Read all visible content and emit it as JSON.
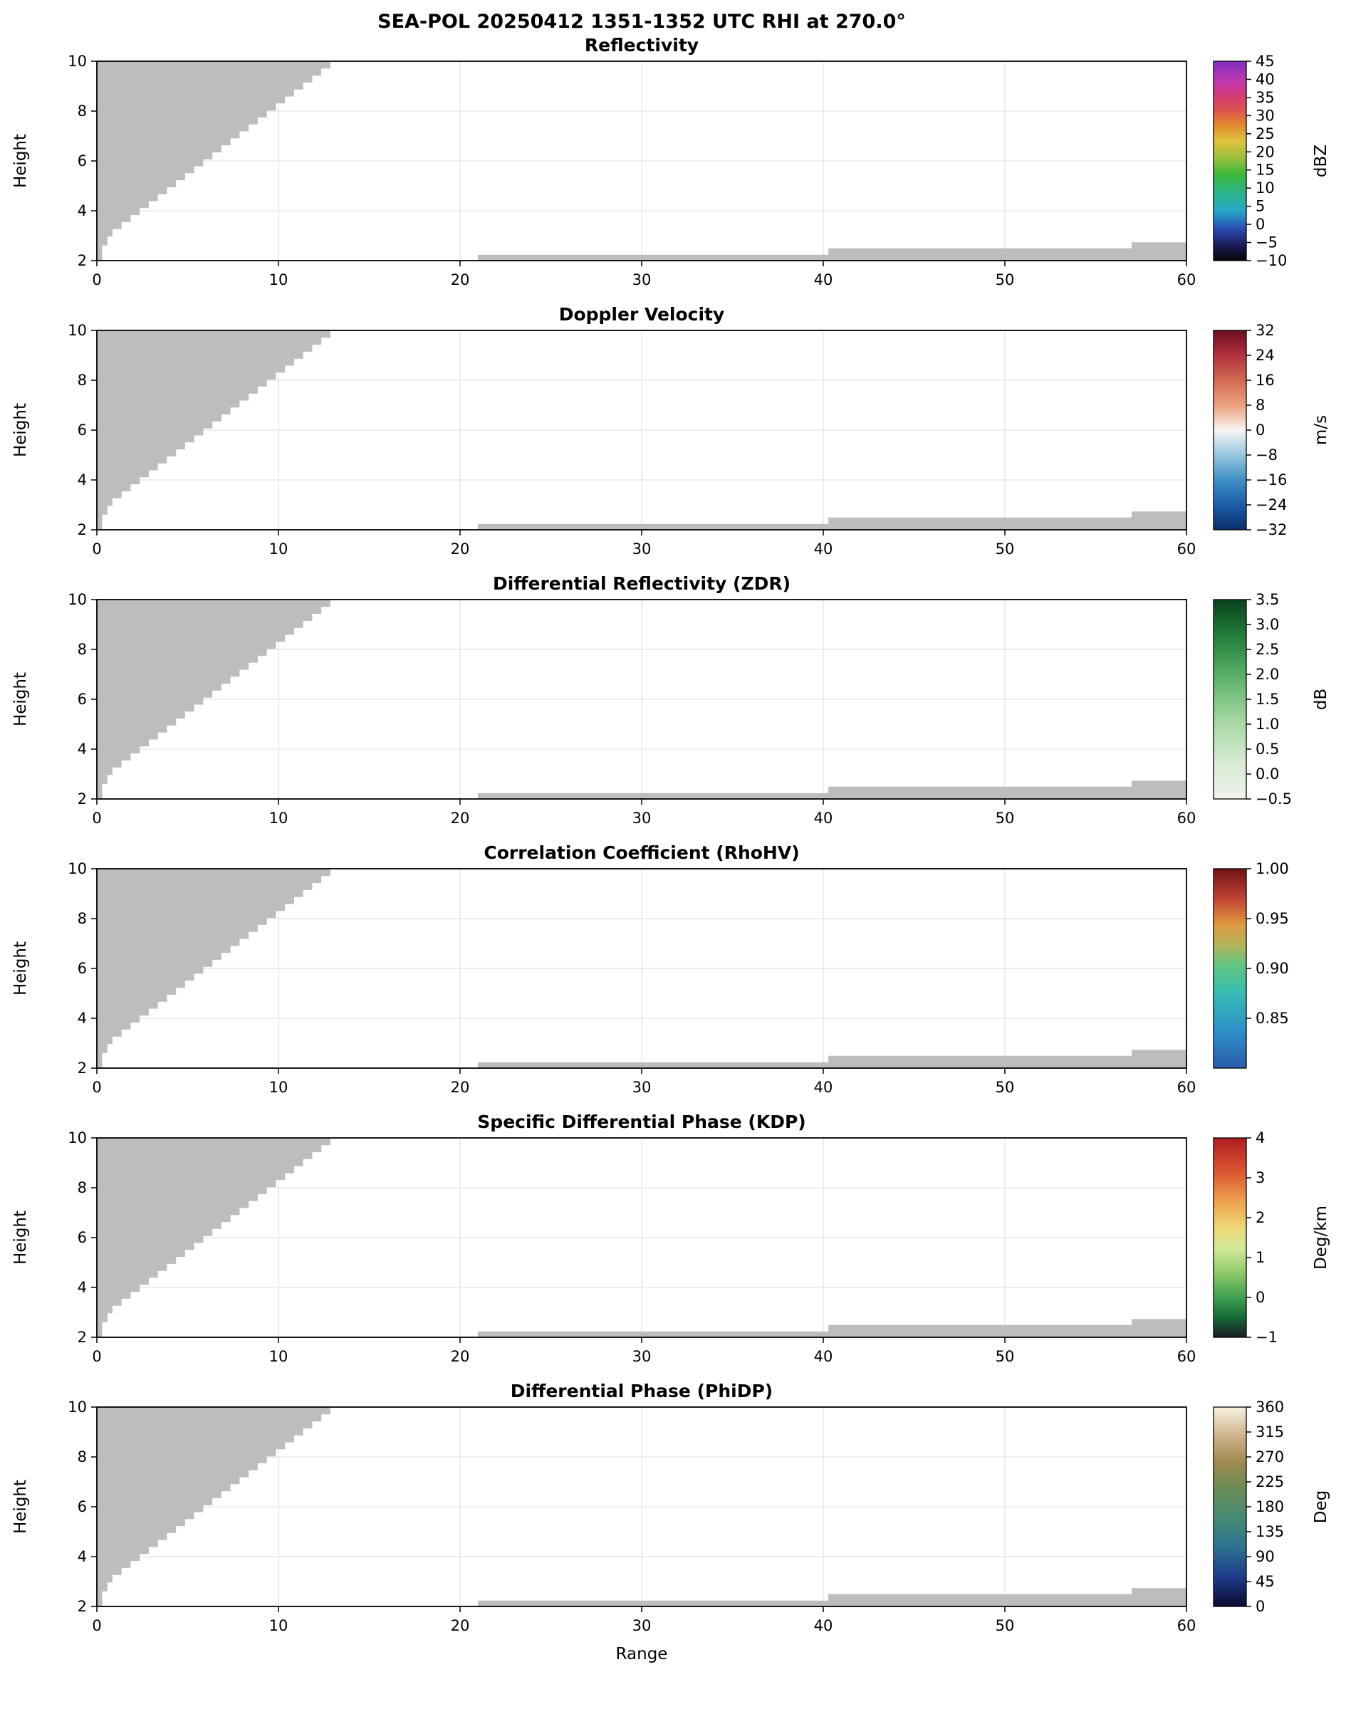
{
  "chart_data": {
    "type": "heatmap",
    "suptitle": "SEA-POL 20250412 1351-1352 UTC RHI at 270.0°",
    "xlabel": "Range",
    "ylabel": "Height",
    "grid": true,
    "mask_color": "#bdbdbd",
    "axes": {
      "x": {
        "min": 0,
        "max": 60,
        "tick_values": [
          0,
          10,
          20,
          30,
          40,
          50,
          60
        ],
        "ticks": [
          "0",
          "10",
          "20",
          "30",
          "40",
          "50",
          "60"
        ]
      },
      "y": {
        "min": 2,
        "max": 10,
        "tick_values": [
          2,
          4,
          6,
          8,
          10
        ],
        "ticks": [
          "2",
          "4",
          "6",
          "8",
          "10"
        ]
      }
    },
    "masked_regions": {
      "near_radar_wedge_polygon": [
        [
          0,
          2.0
        ],
        [
          0.28,
          2.0
        ],
        [
          0.28,
          2.62
        ],
        [
          0.56,
          2.62
        ],
        [
          0.56,
          2.98
        ],
        [
          0.84,
          2.98
        ],
        [
          0.84,
          3.28
        ],
        [
          1.34,
          3.28
        ],
        [
          1.34,
          3.56
        ],
        [
          1.84,
          3.56
        ],
        [
          1.84,
          3.84
        ],
        [
          2.34,
          3.84
        ],
        [
          2.34,
          4.12
        ],
        [
          2.84,
          4.12
        ],
        [
          2.84,
          4.4
        ],
        [
          3.34,
          4.4
        ],
        [
          3.34,
          4.68
        ],
        [
          3.84,
          4.68
        ],
        [
          3.84,
          4.96
        ],
        [
          4.34,
          4.96
        ],
        [
          4.34,
          5.24
        ],
        [
          4.84,
          5.24
        ],
        [
          4.84,
          5.52
        ],
        [
          5.34,
          5.52
        ],
        [
          5.34,
          5.8
        ],
        [
          5.84,
          5.8
        ],
        [
          5.84,
          6.08
        ],
        [
          6.34,
          6.08
        ],
        [
          6.34,
          6.36
        ],
        [
          6.84,
          6.36
        ],
        [
          6.84,
          6.64
        ],
        [
          7.34,
          6.64
        ],
        [
          7.34,
          6.92
        ],
        [
          7.84,
          6.92
        ],
        [
          7.84,
          7.2
        ],
        [
          8.34,
          7.2
        ],
        [
          8.34,
          7.48
        ],
        [
          8.84,
          7.48
        ],
        [
          8.84,
          7.76
        ],
        [
          9.34,
          7.76
        ],
        [
          9.34,
          8.04
        ],
        [
          9.84,
          8.04
        ],
        [
          9.84,
          8.32
        ],
        [
          10.34,
          8.32
        ],
        [
          10.34,
          8.6
        ],
        [
          10.84,
          8.6
        ],
        [
          10.84,
          8.88
        ],
        [
          11.34,
          8.88
        ],
        [
          11.34,
          9.16
        ],
        [
          11.84,
          9.16
        ],
        [
          11.84,
          9.44
        ],
        [
          12.34,
          9.44
        ],
        [
          12.34,
          9.72
        ],
        [
          12.84,
          9.72
        ],
        [
          12.84,
          10.0
        ],
        [
          0,
          10.0
        ]
      ],
      "low_level_strips": [
        [
          21.0,
          2.0,
          40.3,
          2.22
        ],
        [
          40.3,
          2.0,
          57.0,
          2.48
        ],
        [
          57.0,
          2.0,
          60.0,
          2.72
        ]
      ]
    },
    "panels": [
      {
        "id": "reflectivity",
        "title": "Reflectivity",
        "colorbar": {
          "unit": "dBZ",
          "vmin": -10,
          "vmax": 45,
          "tick_values": [
            45,
            40,
            35,
            30,
            25,
            20,
            15,
            10,
            5,
            0,
            -5,
            -10
          ],
          "tick_labels": [
            "45",
            "40",
            "35",
            "30",
            "25",
            "20",
            "15",
            "10",
            "5",
            "0",
            "−5",
            "−10"
          ],
          "gradient": [
            [
              0,
              "#050505"
            ],
            [
              0.07,
              "#191952"
            ],
            [
              0.16,
              "#2a4cb4"
            ],
            [
              0.25,
              "#27a8c8"
            ],
            [
              0.34,
              "#2bb489"
            ],
            [
              0.43,
              "#3cb83c"
            ],
            [
              0.52,
              "#9fc03c"
            ],
            [
              0.6,
              "#e0c23c"
            ],
            [
              0.68,
              "#e08a2e"
            ],
            [
              0.76,
              "#dd5050"
            ],
            [
              0.83,
              "#d23c78"
            ],
            [
              0.9,
              "#c038b0"
            ],
            [
              1,
              "#8030c0"
            ]
          ]
        }
      },
      {
        "id": "doppler-velocity",
        "title": "Doppler Velocity",
        "colorbar": {
          "unit": "m/s",
          "vmin": -32,
          "vmax": 32,
          "tick_values": [
            32,
            24,
            16,
            8,
            0,
            -8,
            -16,
            -24,
            -32
          ],
          "tick_labels": [
            "32",
            "24",
            "16",
            "8",
            "0",
            "−8",
            "−16",
            "−24",
            "−32"
          ],
          "gradient": [
            [
              0,
              "#0a2f6b"
            ],
            [
              0.12,
              "#1b5ba6"
            ],
            [
              0.25,
              "#3f8fc5"
            ],
            [
              0.38,
              "#9ac8e0"
            ],
            [
              0.5,
              "#f8f6f4"
            ],
            [
              0.62,
              "#eda380"
            ],
            [
              0.75,
              "#d16a52"
            ],
            [
              0.88,
              "#b03040"
            ],
            [
              1,
              "#6b0d1e"
            ]
          ]
        }
      },
      {
        "id": "zdr",
        "title": "Differential Reflectivity (ZDR)",
        "colorbar": {
          "unit": "dB",
          "vmin": -0.5,
          "vmax": 3.5,
          "tick_values": [
            3.5,
            3.0,
            2.5,
            2.0,
            1.5,
            1.0,
            0.5,
            0.0,
            -0.5
          ],
          "tick_labels": [
            "3.5",
            "3.0",
            "2.5",
            "2.0",
            "1.5",
            "1.0",
            "0.5",
            "0.0",
            "−0.5"
          ],
          "gradient": [
            [
              0,
              "#f0f2ee"
            ],
            [
              0.2,
              "#d4ead0"
            ],
            [
              0.4,
              "#a3d6a0"
            ],
            [
              0.6,
              "#5fb46a"
            ],
            [
              0.8,
              "#27833f"
            ],
            [
              1,
              "#08421c"
            ]
          ]
        }
      },
      {
        "id": "rhohv",
        "title": "Correlation Coefficient (RhoHV)",
        "colorbar": {
          "unit": "",
          "vmin": 0.8,
          "vmax": 1.0,
          "tick_values": [
            1.0,
            0.95,
            0.9,
            0.85
          ],
          "tick_labels": [
            "1.00",
            "0.95",
            "0.90",
            "0.85"
          ],
          "gradient": [
            [
              0,
              "#2a5cac"
            ],
            [
              0.2,
              "#2e93c8"
            ],
            [
              0.38,
              "#38bdb2"
            ],
            [
              0.52,
              "#63c47e"
            ],
            [
              0.62,
              "#b4b45a"
            ],
            [
              0.72,
              "#e09a40"
            ],
            [
              0.85,
              "#c24434"
            ],
            [
              1,
              "#701216"
            ]
          ]
        }
      },
      {
        "id": "kdp",
        "title": "Specific Differential Phase (KDP)",
        "colorbar": {
          "unit": "Deg/km",
          "vmin": -1,
          "vmax": 4,
          "tick_values": [
            4,
            3,
            2,
            1,
            0,
            -1
          ],
          "tick_labels": [
            "4",
            "3",
            "2",
            "1",
            "0",
            "−1"
          ],
          "gradient": [
            [
              0,
              "#1a1a24"
            ],
            [
              0.1,
              "#166b38"
            ],
            [
              0.2,
              "#3fa052"
            ],
            [
              0.32,
              "#8cc866"
            ],
            [
              0.44,
              "#d2e89a"
            ],
            [
              0.55,
              "#f0d878"
            ],
            [
              0.68,
              "#eda24e"
            ],
            [
              0.82,
              "#dc5b33"
            ],
            [
              1,
              "#b01c20"
            ]
          ]
        }
      },
      {
        "id": "phidp",
        "title": "Differential Phase (PhiDP)",
        "colorbar": {
          "unit": "Deg",
          "vmin": 0,
          "vmax": 360,
          "tick_values": [
            360,
            315,
            270,
            225,
            180,
            135,
            90,
            45,
            0
          ],
          "tick_labels": [
            "360",
            "315",
            "270",
            "225",
            "180",
            "135",
            "90",
            "45",
            "0"
          ],
          "gradient": [
            [
              0,
              "#0b0b30"
            ],
            [
              0.15,
              "#1e3c8c"
            ],
            [
              0.3,
              "#2e7490"
            ],
            [
              0.45,
              "#478c72"
            ],
            [
              0.6,
              "#6e8c55"
            ],
            [
              0.72,
              "#a08a50"
            ],
            [
              0.85,
              "#ccb088"
            ],
            [
              1,
              "#f7f2e0"
            ]
          ]
        }
      }
    ]
  }
}
